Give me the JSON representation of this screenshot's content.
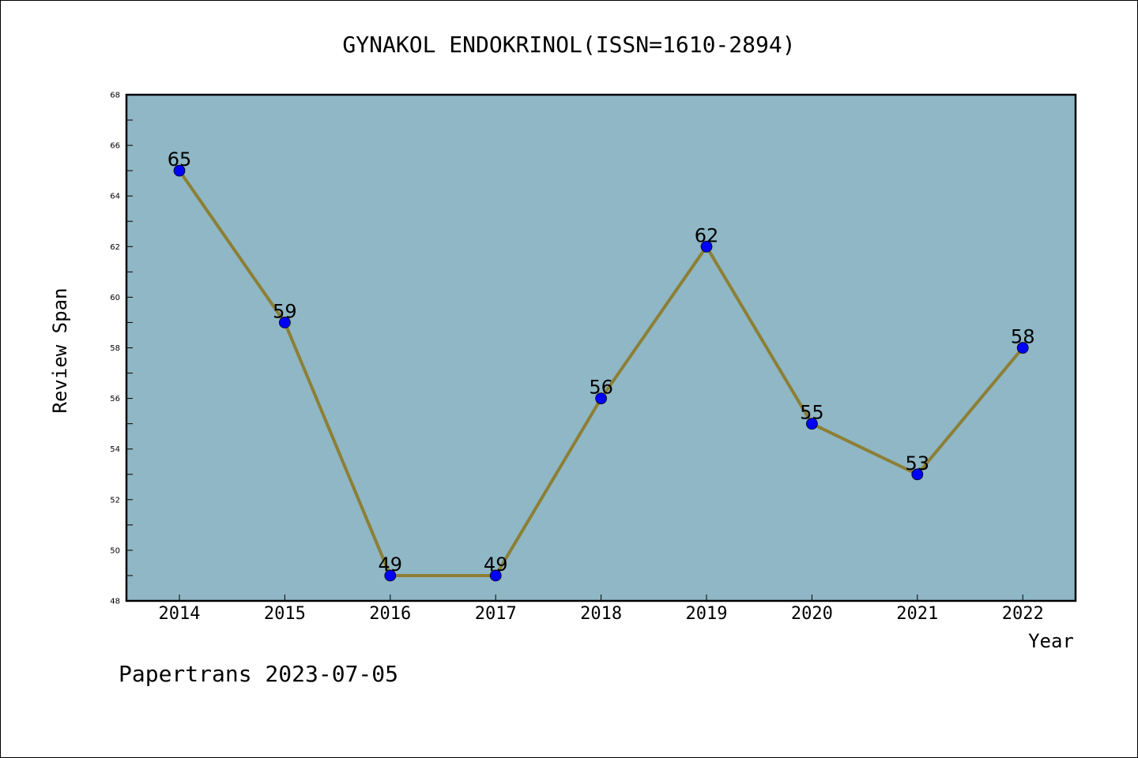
{
  "footer": "Papertrans 2023-07-05",
  "colors": {
    "plot_background": "#8fb7c5",
    "line": "#8c7f35",
    "marker": "#0000ff"
  },
  "chart_data": {
    "type": "line",
    "title": "GYNAKOL ENDOKRINOL(ISSN=1610-2894)",
    "xlabel": "Year",
    "ylabel": "Review Span",
    "categories": [
      "2014",
      "2015",
      "2016",
      "2017",
      "2018",
      "2019",
      "2020",
      "2021",
      "2022"
    ],
    "series": [
      {
        "values": [
          65,
          59,
          49,
          49,
          56,
          62,
          55,
          53,
          58
        ]
      }
    ],
    "ylim": [
      48,
      68
    ],
    "yticks": [
      48,
      50,
      52,
      54,
      56,
      58,
      60,
      62,
      64,
      66,
      68
    ],
    "grid": false,
    "data_labels": true
  }
}
